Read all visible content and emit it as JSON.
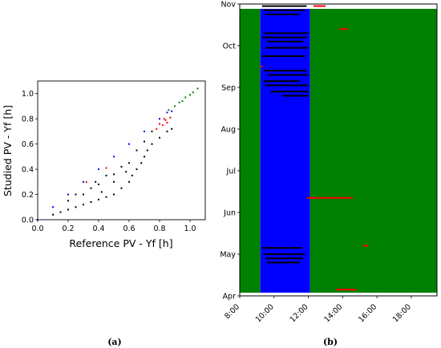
{
  "colors": {
    "black": "#000000",
    "blue": "#0000ff",
    "green": "#008000",
    "red": "#ff0000",
    "panel_bg": "#ffffff"
  },
  "captions": {
    "left": "(a)",
    "right": "(b)"
  },
  "chart_data": [
    {
      "type": "scatter",
      "xlabel": "Reference PV - Yf [h]",
      "ylabel": "Studied PV - Yf [h]",
      "xlim": [
        0.0,
        1.1
      ],
      "ylim": [
        0.0,
        1.1
      ],
      "xticks": [
        "0.0",
        "0.2",
        "0.4",
        "0.6",
        "0.8",
        "1.0"
      ],
      "yticks": [
        "0.0",
        "0.2",
        "0.4",
        "0.6",
        "0.8",
        "1.0"
      ],
      "grid": false,
      "series": [
        {
          "color": "blue",
          "points": [
            [
              0.0,
              0.0
            ],
            [
              0.1,
              0.1
            ],
            [
              0.2,
              0.2
            ],
            [
              0.3,
              0.3
            ],
            [
              0.4,
              0.4
            ],
            [
              0.5,
              0.5
            ],
            [
              0.6,
              0.6
            ],
            [
              0.7,
              0.7
            ],
            [
              0.8,
              0.8
            ],
            [
              0.85,
              0.85
            ],
            [
              0.88,
              0.86
            ]
          ]
        },
        {
          "color": "green",
          "points": [
            [
              0.86,
              0.87
            ],
            [
              0.9,
              0.9
            ],
            [
              0.93,
              0.93
            ],
            [
              0.95,
              0.94
            ],
            [
              0.97,
              0.97
            ],
            [
              1.0,
              0.99
            ],
            [
              1.02,
              1.01
            ],
            [
              1.05,
              1.04
            ]
          ]
        },
        {
          "color": "red",
          "points": [
            [
              0.32,
              0.3
            ],
            [
              0.45,
              0.41
            ],
            [
              0.78,
              0.72
            ],
            [
              0.8,
              0.76
            ],
            [
              0.82,
              0.75
            ],
            [
              0.83,
              0.8
            ],
            [
              0.84,
              0.79
            ],
            [
              0.85,
              0.77
            ],
            [
              0.87,
              0.81
            ]
          ]
        },
        {
          "color": "black",
          "points": [
            [
              0.1,
              0.04
            ],
            [
              0.15,
              0.06
            ],
            [
              0.2,
              0.08
            ],
            [
              0.25,
              0.1
            ],
            [
              0.3,
              0.12
            ],
            [
              0.35,
              0.14
            ],
            [
              0.4,
              0.16
            ],
            [
              0.45,
              0.18
            ],
            [
              0.5,
              0.2
            ],
            [
              0.55,
              0.25
            ],
            [
              0.6,
              0.3
            ],
            [
              0.62,
              0.35
            ],
            [
              0.65,
              0.4
            ],
            [
              0.68,
              0.45
            ],
            [
              0.7,
              0.5
            ],
            [
              0.72,
              0.55
            ],
            [
              0.75,
              0.6
            ],
            [
              0.8,
              0.65
            ],
            [
              0.85,
              0.7
            ],
            [
              0.88,
              0.72
            ],
            [
              0.3,
              0.2
            ],
            [
              0.4,
              0.28
            ],
            [
              0.5,
              0.36
            ],
            [
              0.55,
              0.42
            ],
            [
              0.35,
              0.25
            ],
            [
              0.45,
              0.35
            ],
            [
              0.6,
              0.45
            ],
            [
              0.25,
              0.2
            ],
            [
              0.2,
              0.15
            ],
            [
              0.5,
              0.3
            ],
            [
              0.58,
              0.38
            ],
            [
              0.42,
              0.22
            ],
            [
              0.38,
              0.3
            ],
            [
              0.65,
              0.55
            ],
            [
              0.7,
              0.62
            ],
            [
              0.75,
              0.7
            ]
          ]
        }
      ]
    },
    {
      "type": "heatmap",
      "ytick_labels": [
        "Apr",
        "May",
        "Jun",
        "Jul",
        "Aug",
        "Sep",
        "Oct",
        "Nov"
      ],
      "ytick_values": [
        0,
        1,
        2,
        3,
        4,
        5,
        6,
        7
      ],
      "ylim": [
        0,
        7
      ],
      "xtick_labels": [
        "8:00",
        "10:00",
        "12:00",
        "14:00",
        "16:00",
        "18:00"
      ],
      "xtick_values": [
        8,
        10,
        12,
        14,
        16,
        18
      ],
      "xlim": [
        8,
        19.5
      ],
      "bands": [
        {
          "color": "green",
          "x": [
            8.0,
            9.2
          ]
        },
        {
          "color": "blue",
          "x": [
            9.2,
            12.1
          ]
        },
        {
          "color": "green",
          "x": [
            12.1,
            19.5
          ]
        }
      ],
      "markers": [
        {
          "color": "black",
          "t": 6.95,
          "x": [
            9.3,
            11.9
          ]
        },
        {
          "color": "black",
          "t": 6.85,
          "x": [
            9.4,
            11.8
          ]
        },
        {
          "color": "black",
          "t": 6.75,
          "x": [
            9.5,
            11.5
          ]
        },
        {
          "color": "black",
          "t": 6.3,
          "x": [
            9.4,
            12.0
          ]
        },
        {
          "color": "black",
          "t": 6.2,
          "x": [
            9.3,
            11.9
          ]
        },
        {
          "color": "black",
          "t": 6.1,
          "x": [
            9.6,
            11.7
          ]
        },
        {
          "color": "black",
          "t": 5.95,
          "x": [
            9.5,
            12.0
          ]
        },
        {
          "color": "black",
          "t": 5.75,
          "x": [
            9.3,
            11.8
          ]
        },
        {
          "color": "black",
          "t": 5.4,
          "x": [
            9.4,
            11.9
          ]
        },
        {
          "color": "black",
          "t": 5.3,
          "x": [
            9.6,
            12.0
          ]
        },
        {
          "color": "black",
          "t": 5.15,
          "x": [
            9.4,
            11.5
          ]
        },
        {
          "color": "black",
          "t": 5.05,
          "x": [
            9.5,
            12.0
          ]
        },
        {
          "color": "black",
          "t": 4.9,
          "x": [
            9.8,
            12.0
          ]
        },
        {
          "color": "black",
          "t": 4.8,
          "x": [
            10.5,
            12.0
          ]
        },
        {
          "color": "black",
          "t": 1.15,
          "x": [
            9.3,
            11.6
          ]
        },
        {
          "color": "black",
          "t": 1.0,
          "x": [
            9.4,
            11.8
          ]
        },
        {
          "color": "black",
          "t": 0.9,
          "x": [
            9.5,
            11.7
          ]
        },
        {
          "color": "black",
          "t": 0.8,
          "x": [
            9.6,
            11.5
          ]
        },
        {
          "color": "red",
          "t": 6.95,
          "x": [
            12.3,
            13.0
          ]
        },
        {
          "color": "red",
          "t": 6.4,
          "x": [
            13.8,
            14.3
          ]
        },
        {
          "color": "red",
          "t": 5.5,
          "x": [
            9.2,
            9.35
          ]
        },
        {
          "color": "red",
          "t": 2.35,
          "x": [
            11.9,
            14.6
          ]
        },
        {
          "color": "red",
          "t": 1.2,
          "x": [
            15.2,
            15.5
          ]
        },
        {
          "color": "red",
          "t": 0.15,
          "x": [
            13.6,
            14.8
          ]
        }
      ]
    }
  ]
}
